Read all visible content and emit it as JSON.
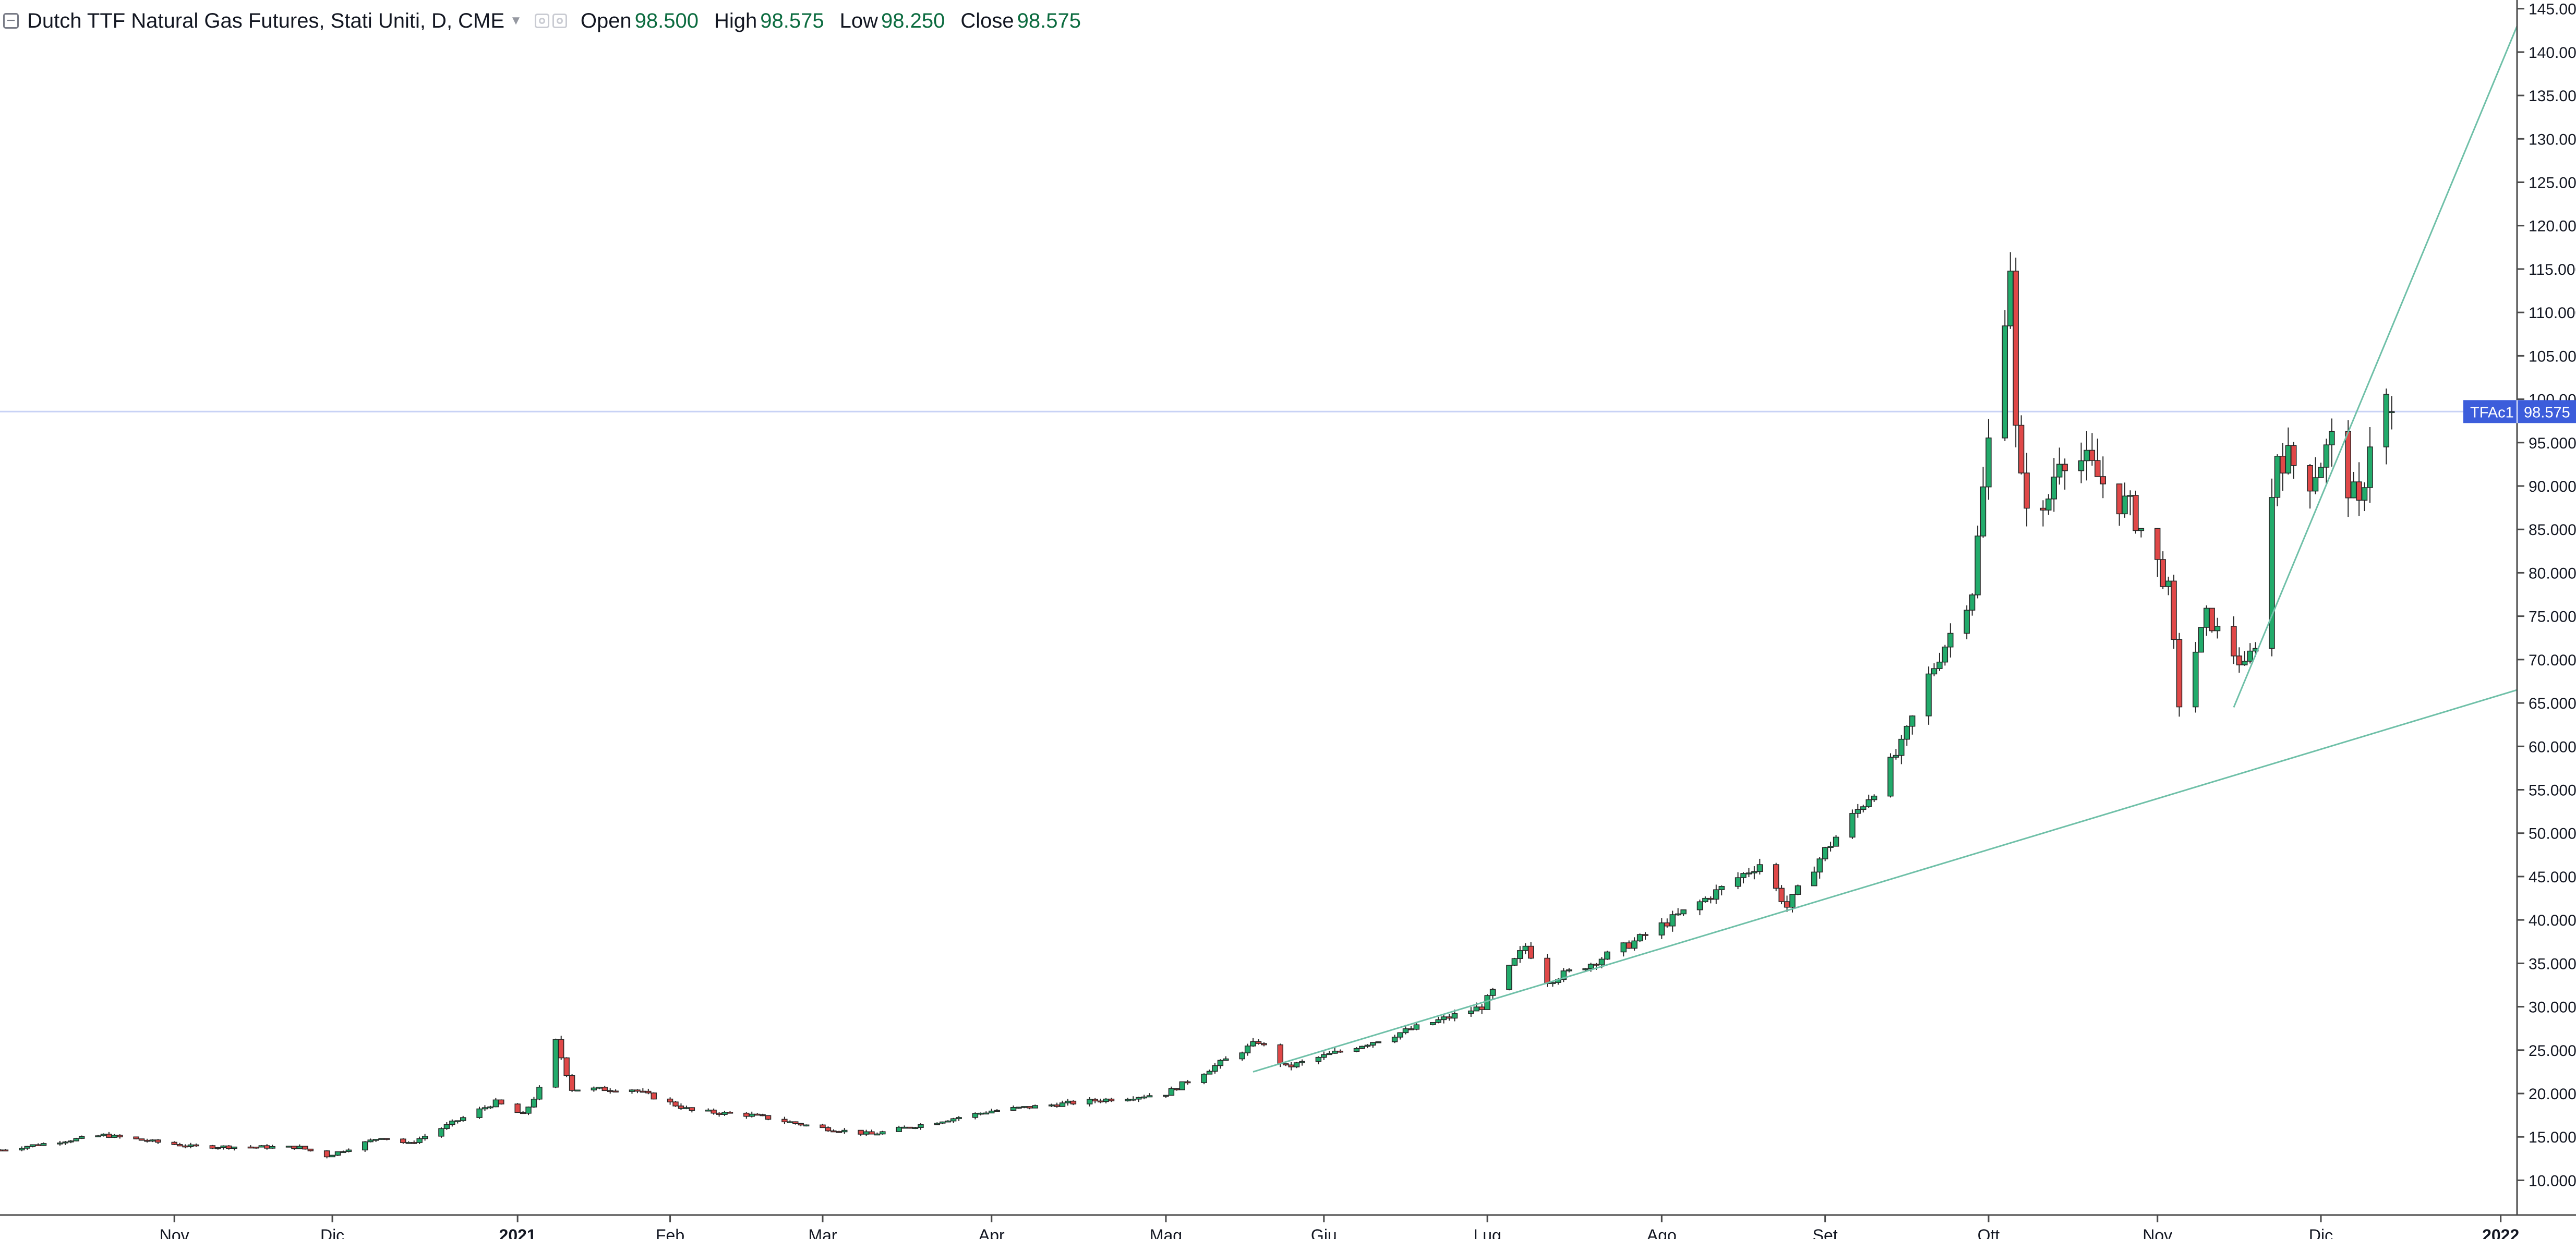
{
  "legend": {
    "title": "Dutch TTF Natural Gas Futures, Stati Uniti, D, CME",
    "open_label": "Open",
    "open_value": "98.500",
    "high_label": "High",
    "high_value": "98.575",
    "low_label": "Low",
    "low_value": "98.250",
    "close_label": "Close",
    "close_value": "98.575"
  },
  "colors": {
    "up": "#26a69a",
    "up_fill": "#22ab6b",
    "down_fill": "#e04848",
    "wick": "#262626",
    "trendline": "#6fc0a8",
    "price_line": "#c8d2f5",
    "price_tag_bg": "#3c5ddb"
  },
  "price_tag": {
    "symbol": "TFAc1",
    "value": "98.575"
  },
  "chart_data": {
    "type": "candlestick",
    "ylim": [
      6,
      146
    ],
    "ylabel_ticks": [
      "10.000",
      "15.000",
      "20.000",
      "25.000",
      "30.000",
      "35.000",
      "40.000",
      "45.000",
      "50.000",
      "55.000",
      "60.000",
      "65.000",
      "70.000",
      "75.000",
      "80.000",
      "85.000",
      "90.000",
      "95.000",
      "100.000",
      "105.000",
      "110.000",
      "115.000",
      "120.000",
      "125.000",
      "130.000",
      "135.000",
      "140.000",
      "145.000"
    ],
    "xlim": [
      "2020-10-01",
      "2022-01-06"
    ],
    "x_ticks": [
      {
        "label": "Nov",
        "date": "2020-11-02",
        "bold": false
      },
      {
        "label": "Dic",
        "date": "2020-12-01",
        "bold": false
      },
      {
        "label": "2021",
        "date": "2021-01-04",
        "bold": true
      },
      {
        "label": "Feb",
        "date": "2021-02-01",
        "bold": false
      },
      {
        "label": "Mar",
        "date": "2021-03-01",
        "bold": false
      },
      {
        "label": "Apr",
        "date": "2021-04-01",
        "bold": false
      },
      {
        "label": "Mag",
        "date": "2021-05-03",
        "bold": false
      },
      {
        "label": "Giu",
        "date": "2021-06-01",
        "bold": false
      },
      {
        "label": "Lug",
        "date": "2021-07-01",
        "bold": false
      },
      {
        "label": "Ago",
        "date": "2021-08-02",
        "bold": false
      },
      {
        "label": "Set",
        "date": "2021-09-01",
        "bold": false
      },
      {
        "label": "Ott",
        "date": "2021-10-01",
        "bold": false
      },
      {
        "label": "Nov",
        "date": "2021-11-01",
        "bold": false
      },
      {
        "label": "Dic",
        "date": "2021-12-01",
        "bold": false
      },
      {
        "label": "2022",
        "date": "2022-01-03",
        "bold": true
      }
    ],
    "ohlc_keypoints": [
      {
        "date": "2020-10-01",
        "close": 13.5
      },
      {
        "date": "2020-10-20",
        "close": 15.2
      },
      {
        "date": "2020-11-05",
        "close": 13.9
      },
      {
        "date": "2020-11-25",
        "close": 13.8
      },
      {
        "date": "2020-11-30",
        "close": 12.8
      },
      {
        "date": "2020-12-10",
        "close": 15.0
      },
      {
        "date": "2020-12-15",
        "close": 14.2
      },
      {
        "date": "2020-12-31",
        "close": 19.0
      },
      {
        "date": "2021-01-05",
        "close": 17.5
      },
      {
        "date": "2021-01-08",
        "close": 20.5
      },
      {
        "date": "2021-01-11",
        "close": 26.0
      },
      {
        "date": "2021-01-14",
        "close": 20.5
      },
      {
        "date": "2021-01-25",
        "close": 20.5
      },
      {
        "date": "2021-02-05",
        "close": 18.0
      },
      {
        "date": "2021-02-16",
        "close": 17.5
      },
      {
        "date": "2021-03-01",
        "close": 16.0
      },
      {
        "date": "2021-03-10",
        "close": 15.3
      },
      {
        "date": "2021-04-01",
        "close": 18.0
      },
      {
        "date": "2021-05-03",
        "close": 20.0
      },
      {
        "date": "2021-05-20",
        "close": 26.0
      },
      {
        "date": "2021-05-25",
        "close": 23.0
      },
      {
        "date": "2021-06-10",
        "close": 26.0
      },
      {
        "date": "2021-06-30",
        "close": 30.0
      },
      {
        "date": "2021-07-08",
        "close": 37.0
      },
      {
        "date": "2021-07-12",
        "close": 33.0
      },
      {
        "date": "2021-07-20",
        "close": 35.0
      },
      {
        "date": "2021-07-28",
        "close": 37.5
      },
      {
        "date": "2021-08-09",
        "close": 42.0
      },
      {
        "date": "2021-08-20",
        "close": 46.5
      },
      {
        "date": "2021-08-25",
        "close": 41.5
      },
      {
        "date": "2021-09-01",
        "close": 48.0
      },
      {
        "date": "2021-09-10",
        "close": 55.0
      },
      {
        "date": "2021-09-15",
        "close": 60.0
      },
      {
        "date": "2021-09-20",
        "close": 68.0
      },
      {
        "date": "2021-09-28",
        "close": 78.0
      },
      {
        "date": "2021-10-01",
        "close": 95.0
      },
      {
        "date": "2021-10-05",
        "close": 116.0
      },
      {
        "date": "2021-10-06",
        "close": 96.0
      },
      {
        "date": "2021-10-07",
        "close": 90.0
      },
      {
        "date": "2021-10-11",
        "close": 86.0
      },
      {
        "date": "2021-10-14",
        "close": 94.0
      },
      {
        "date": "2021-10-18",
        "close": 93.0
      },
      {
        "date": "2021-10-28",
        "close": 86.5
      },
      {
        "date": "2021-11-03",
        "close": 78.0
      },
      {
        "date": "2021-11-05",
        "close": 65.0
      },
      {
        "date": "2021-11-10",
        "close": 75.0
      },
      {
        "date": "2021-11-17",
        "close": 69.0
      },
      {
        "date": "2021-11-19",
        "close": 72.0
      },
      {
        "date": "2021-11-23",
        "close": 94.0
      },
      {
        "date": "2021-11-29",
        "close": 91.0
      },
      {
        "date": "2021-12-03",
        "close": 95.0
      },
      {
        "date": "2021-12-08",
        "close": 87.0
      },
      {
        "date": "2021-12-10",
        "close": 95.5
      },
      {
        "date": "2021-12-13",
        "close": 100.0
      },
      {
        "date": "2021-12-14",
        "close": 98.575
      }
    ],
    "trendlines": [
      {
        "x1": "2021-05-19",
        "y1": 22.5,
        "x2": "2022-01-06",
        "y2": 66.5
      },
      {
        "x1": "2021-11-15",
        "y1": 64.5,
        "x2": "2022-01-06",
        "y2": 143.0
      }
    ],
    "last_price": 98.575
  }
}
